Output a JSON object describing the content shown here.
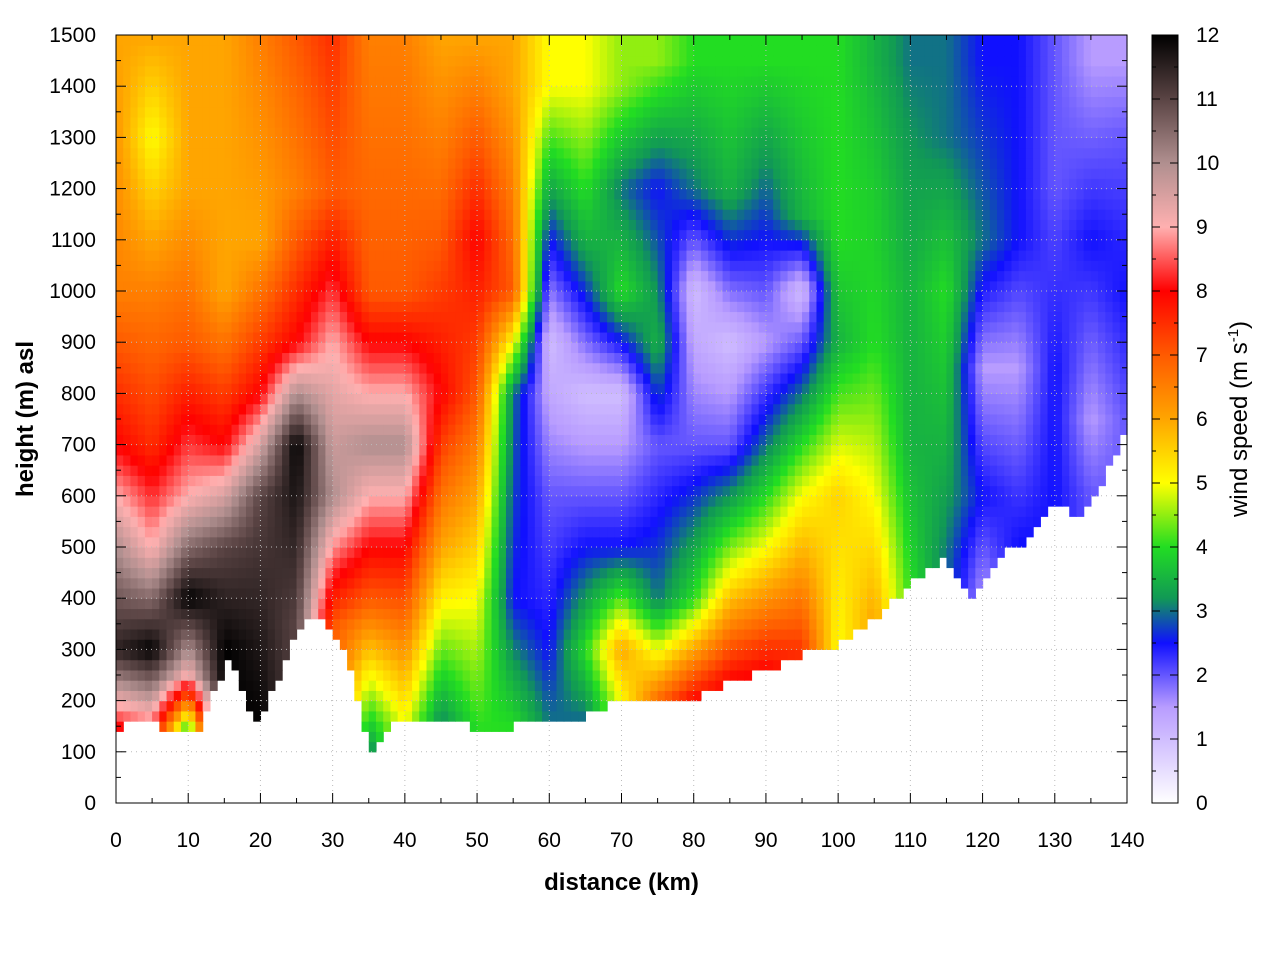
{
  "chart_data": {
    "type": "heatmap",
    "xlabel": "distance (km)",
    "ylabel": "height (m) asl",
    "colorbar_label_prefix": "wind speed (m s",
    "colorbar_label_sup": "-1",
    "colorbar_label_suffix": ")",
    "xlim": [
      0,
      140
    ],
    "ylim": [
      0,
      1500
    ],
    "clim": [
      0,
      12
    ],
    "x_ticks": [
      0,
      10,
      20,
      30,
      40,
      50,
      60,
      70,
      80,
      90,
      100,
      110,
      120,
      130,
      140
    ],
    "y_ticks": [
      0,
      100,
      200,
      300,
      400,
      500,
      600,
      700,
      800,
      900,
      1000,
      1100,
      1200,
      1300,
      1400,
      1500
    ],
    "c_ticks": [
      0,
      1,
      2,
      3,
      4,
      5,
      6,
      7,
      8,
      9,
      10,
      11,
      12
    ],
    "grid": true,
    "colormap": [
      {
        "v": 0,
        "color": "#ffffff"
      },
      {
        "v": 1.5,
        "color": "#b89cff"
      },
      {
        "v": 2.5,
        "color": "#1010ff"
      },
      {
        "v": 3.2,
        "color": "#119955"
      },
      {
        "v": 4,
        "color": "#22dd22"
      },
      {
        "v": 5,
        "color": "#ffff00"
      },
      {
        "v": 6,
        "color": "#ffa500"
      },
      {
        "v": 7,
        "color": "#ff5a00"
      },
      {
        "v": 8,
        "color": "#ff0000"
      },
      {
        "v": 9,
        "color": "#ffb0b0"
      },
      {
        "v": 10,
        "color": "#b08f8f"
      },
      {
        "v": 11,
        "color": "#5a4444"
      },
      {
        "v": 12,
        "color": "#000000"
      }
    ],
    "ground_height": [
      {
        "x": 0,
        "y": 140
      },
      {
        "x": 3,
        "y": 165
      },
      {
        "x": 6,
        "y": 150
      },
      {
        "x": 9,
        "y": 140
      },
      {
        "x": 11,
        "y": 132
      },
      {
        "x": 13,
        "y": 200
      },
      {
        "x": 16,
        "y": 285
      },
      {
        "x": 19,
        "y": 150
      },
      {
        "x": 22,
        "y": 230
      },
      {
        "x": 26,
        "y": 360
      },
      {
        "x": 30,
        "y": 345
      },
      {
        "x": 33,
        "y": 240
      },
      {
        "x": 35,
        "y": 95
      },
      {
        "x": 38,
        "y": 160
      },
      {
        "x": 41,
        "y": 170
      },
      {
        "x": 44,
        "y": 150
      },
      {
        "x": 47,
        "y": 170
      },
      {
        "x": 50,
        "y": 140
      },
      {
        "x": 55,
        "y": 150
      },
      {
        "x": 60,
        "y": 160
      },
      {
        "x": 65,
        "y": 170
      },
      {
        "x": 70,
        "y": 200
      },
      {
        "x": 75,
        "y": 190
      },
      {
        "x": 80,
        "y": 200
      },
      {
        "x": 85,
        "y": 240
      },
      {
        "x": 90,
        "y": 260
      },
      {
        "x": 95,
        "y": 290
      },
      {
        "x": 100,
        "y": 310
      },
      {
        "x": 105,
        "y": 360
      },
      {
        "x": 110,
        "y": 430
      },
      {
        "x": 115,
        "y": 480
      },
      {
        "x": 119,
        "y": 400
      },
      {
        "x": 122,
        "y": 480
      },
      {
        "x": 126,
        "y": 510
      },
      {
        "x": 130,
        "y": 590
      },
      {
        "x": 133,
        "y": 560
      },
      {
        "x": 137,
        "y": 640
      },
      {
        "x": 140,
        "y": 740
      }
    ],
    "wind_speed_profiles": [
      {
        "x": 0,
        "speeds": [
          {
            "h": 150,
            "v": 8
          },
          {
            "h": 300,
            "v": 11.5
          },
          {
            "h": 500,
            "v": 10
          },
          {
            "h": 700,
            "v": 8
          },
          {
            "h": 1000,
            "v": 6.5
          },
          {
            "h": 1500,
            "v": 6
          }
        ]
      },
      {
        "x": 5,
        "speeds": [
          {
            "h": 150,
            "v": 8.5
          },
          {
            "h": 300,
            "v": 12
          },
          {
            "h": 500,
            "v": 9
          },
          {
            "h": 700,
            "v": 7.5
          },
          {
            "h": 1000,
            "v": 6.5
          },
          {
            "h": 1300,
            "v": 5
          },
          {
            "h": 1500,
            "v": 6
          }
        ]
      },
      {
        "x": 10,
        "speeds": [
          {
            "h": 150,
            "v": 4
          },
          {
            "h": 250,
            "v": 9
          },
          {
            "h": 400,
            "v": 12
          },
          {
            "h": 600,
            "v": 9
          },
          {
            "h": 900,
            "v": 7
          },
          {
            "h": 1200,
            "v": 6
          },
          {
            "h": 1500,
            "v": 6
          }
        ]
      },
      {
        "x": 15,
        "speeds": [
          {
            "h": 300,
            "v": 12
          },
          {
            "h": 500,
            "v": 11
          },
          {
            "h": 700,
            "v": 8
          },
          {
            "h": 1000,
            "v": 6
          },
          {
            "h": 1500,
            "v": 6
          }
        ]
      },
      {
        "x": 20,
        "speeds": [
          {
            "h": 150,
            "v": 12
          },
          {
            "h": 600,
            "v": 11
          },
          {
            "h": 800,
            "v": 8
          },
          {
            "h": 1100,
            "v": 6
          },
          {
            "h": 1500,
            "v": 6.5
          }
        ]
      },
      {
        "x": 25,
        "speeds": [
          {
            "h": 350,
            "v": 11
          },
          {
            "h": 700,
            "v": 12
          },
          {
            "h": 900,
            "v": 8
          },
          {
            "h": 1200,
            "v": 6.5
          },
          {
            "h": 1500,
            "v": 7
          }
        ]
      },
      {
        "x": 30,
        "speeds": [
          {
            "h": 345,
            "v": 7
          },
          {
            "h": 600,
            "v": 10
          },
          {
            "h": 900,
            "v": 9
          },
          {
            "h": 1200,
            "v": 7
          },
          {
            "h": 1500,
            "v": 7.5
          }
        ]
      },
      {
        "x": 35,
        "speeds": [
          {
            "h": 100,
            "v": 3
          },
          {
            "h": 400,
            "v": 7
          },
          {
            "h": 700,
            "v": 10
          },
          {
            "h": 1000,
            "v": 7
          },
          {
            "h": 1500,
            "v": 6.5
          }
        ]
      },
      {
        "x": 40,
        "speeds": [
          {
            "h": 160,
            "v": 5
          },
          {
            "h": 500,
            "v": 8
          },
          {
            "h": 700,
            "v": 10
          },
          {
            "h": 1000,
            "v": 7
          },
          {
            "h": 1500,
            "v": 6.5
          }
        ]
      },
      {
        "x": 45,
        "speeds": [
          {
            "h": 150,
            "v": 3
          },
          {
            "h": 500,
            "v": 6
          },
          {
            "h": 800,
            "v": 8
          },
          {
            "h": 1100,
            "v": 7
          },
          {
            "h": 1500,
            "v": 6
          }
        ]
      },
      {
        "x": 50,
        "speeds": [
          {
            "h": 140,
            "v": 4
          },
          {
            "h": 400,
            "v": 5
          },
          {
            "h": 800,
            "v": 7
          },
          {
            "h": 1100,
            "v": 8
          },
          {
            "h": 1500,
            "v": 6
          }
        ]
      },
      {
        "x": 55,
        "speeds": [
          {
            "h": 150,
            "v": 4
          },
          {
            "h": 400,
            "v": 2.5
          },
          {
            "h": 800,
            "v": 3
          },
          {
            "h": 1000,
            "v": 7
          },
          {
            "h": 1400,
            "v": 6
          }
        ]
      },
      {
        "x": 60,
        "speeds": [
          {
            "h": 160,
            "v": 3
          },
          {
            "h": 300,
            "v": 2.5
          },
          {
            "h": 600,
            "v": 2
          },
          {
            "h": 900,
            "v": 1
          },
          {
            "h": 1100,
            "v": 2.5
          },
          {
            "h": 1400,
            "v": 5
          }
        ]
      },
      {
        "x": 65,
        "speeds": [
          {
            "h": 170,
            "v": 3
          },
          {
            "h": 300,
            "v": 4
          },
          {
            "h": 500,
            "v": 2.5
          },
          {
            "h": 800,
            "v": 1
          },
          {
            "h": 1100,
            "v": 3.5
          },
          {
            "h": 1400,
            "v": 5
          }
        ]
      },
      {
        "x": 70,
        "speeds": [
          {
            "h": 200,
            "v": 5
          },
          {
            "h": 300,
            "v": 6
          },
          {
            "h": 500,
            "v": 2.5
          },
          {
            "h": 800,
            "v": 1
          },
          {
            "h": 1000,
            "v": 4
          },
          {
            "h": 1200,
            "v": 3
          },
          {
            "h": 1400,
            "v": 4.5
          }
        ]
      },
      {
        "x": 75,
        "speeds": [
          {
            "h": 190,
            "v": 7
          },
          {
            "h": 400,
            "v": 3
          },
          {
            "h": 700,
            "v": 2
          },
          {
            "h": 900,
            "v": 3.5
          },
          {
            "h": 1200,
            "v": 2.5
          },
          {
            "h": 1450,
            "v": 4.5
          }
        ]
      },
      {
        "x": 80,
        "speeds": [
          {
            "h": 200,
            "v": 8
          },
          {
            "h": 400,
            "v": 4
          },
          {
            "h": 700,
            "v": 2
          },
          {
            "h": 1000,
            "v": 1
          },
          {
            "h": 1200,
            "v": 3
          },
          {
            "h": 1450,
            "v": 4
          }
        ]
      },
      {
        "x": 85,
        "speeds": [
          {
            "h": 240,
            "v": 8
          },
          {
            "h": 450,
            "v": 5
          },
          {
            "h": 700,
            "v": 2
          },
          {
            "h": 900,
            "v": 1
          },
          {
            "h": 1200,
            "v": 3.5
          },
          {
            "h": 1450,
            "v": 4
          }
        ]
      },
      {
        "x": 90,
        "speeds": [
          {
            "h": 260,
            "v": 8
          },
          {
            "h": 500,
            "v": 5
          },
          {
            "h": 700,
            "v": 3
          },
          {
            "h": 900,
            "v": 1.5
          },
          {
            "h": 1100,
            "v": 2.5
          },
          {
            "h": 1450,
            "v": 4
          }
        ]
      },
      {
        "x": 95,
        "speeds": [
          {
            "h": 290,
            "v": 7.5
          },
          {
            "h": 600,
            "v": 5
          },
          {
            "h": 800,
            "v": 3
          },
          {
            "h": 1000,
            "v": 1
          },
          {
            "h": 1150,
            "v": 3.5
          },
          {
            "h": 1450,
            "v": 4
          }
        ]
      },
      {
        "x": 100,
        "speeds": [
          {
            "h": 310,
            "v": 5
          },
          {
            "h": 600,
            "v": 5.5
          },
          {
            "h": 900,
            "v": 3.5
          },
          {
            "h": 1100,
            "v": 4
          },
          {
            "h": 1450,
            "v": 4
          }
        ]
      },
      {
        "x": 105,
        "speeds": [
          {
            "h": 360,
            "v": 6
          },
          {
            "h": 600,
            "v": 5
          },
          {
            "h": 900,
            "v": 4
          },
          {
            "h": 1200,
            "v": 3.8
          },
          {
            "h": 1450,
            "v": 3.5
          }
        ]
      },
      {
        "x": 110,
        "speeds": [
          {
            "h": 430,
            "v": 4
          },
          {
            "h": 700,
            "v": 3.5
          },
          {
            "h": 1000,
            "v": 3.5
          },
          {
            "h": 1300,
            "v": 3.2
          },
          {
            "h": 1450,
            "v": 3
          }
        ]
      },
      {
        "x": 115,
        "speeds": [
          {
            "h": 480,
            "v": 3
          },
          {
            "h": 700,
            "v": 3.5
          },
          {
            "h": 1000,
            "v": 4
          },
          {
            "h": 1300,
            "v": 3
          },
          {
            "h": 1450,
            "v": 3
          }
        ]
      },
      {
        "x": 120,
        "speeds": [
          {
            "h": 400,
            "v": 1.5
          },
          {
            "h": 600,
            "v": 2.5
          },
          {
            "h": 850,
            "v": 1.5
          },
          {
            "h": 1100,
            "v": 3
          },
          {
            "h": 1450,
            "v": 2.5
          }
        ]
      },
      {
        "x": 125,
        "speeds": [
          {
            "h": 510,
            "v": 2.5
          },
          {
            "h": 850,
            "v": 1.5
          },
          {
            "h": 1100,
            "v": 2.5
          },
          {
            "h": 1450,
            "v": 2.5
          }
        ]
      },
      {
        "x": 130,
        "speeds": [
          {
            "h": 590,
            "v": 2.5
          },
          {
            "h": 850,
            "v": 2.5
          },
          {
            "h": 1200,
            "v": 2
          },
          {
            "h": 1450,
            "v": 2
          }
        ]
      },
      {
        "x": 135,
        "speeds": [
          {
            "h": 600,
            "v": 2
          },
          {
            "h": 750,
            "v": 1.5
          },
          {
            "h": 1100,
            "v": 2.5
          },
          {
            "h": 1450,
            "v": 1.5
          }
        ]
      },
      {
        "x": 140,
        "speeds": [
          {
            "h": 740,
            "v": 2
          },
          {
            "h": 1000,
            "v": 2.5
          },
          {
            "h": 1300,
            "v": 2
          },
          {
            "h": 1450,
            "v": 1.5
          }
        ]
      }
    ]
  }
}
